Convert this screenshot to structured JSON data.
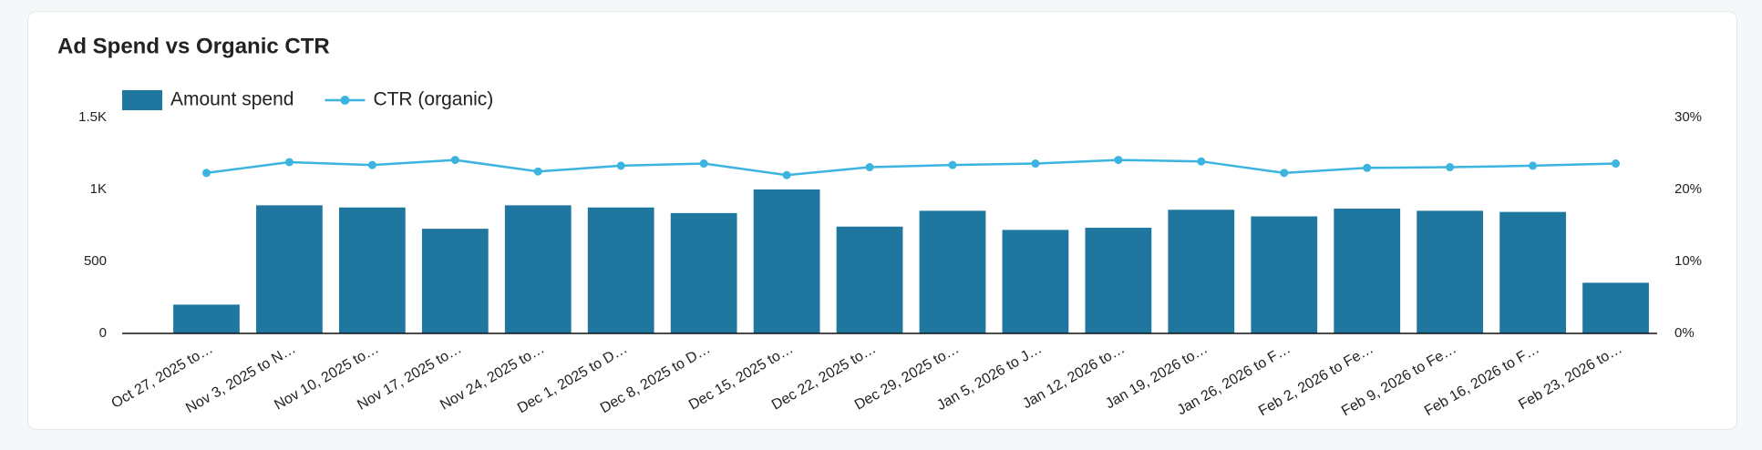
{
  "chart_data": {
    "type": "bar_line",
    "title": "Ad Spend vs Organic CTR",
    "categories": [
      "Oct 27, 2025 to…",
      "Nov 3, 2025 to N…",
      "Nov 10, 2025 to…",
      "Nov 17, 2025 to…",
      "Nov 24, 2025 to…",
      "Dec 1, 2025 to D…",
      "Dec 8, 2025 to D…",
      "Dec 15, 2025 to…",
      "Dec 22, 2025 to…",
      "Dec 29, 2025 to…",
      "Jan 5, 2026 to J…",
      "Jan 12, 2026 to…",
      "Jan 19, 2026 to…",
      "Jan 26, 2026 to F…",
      "Feb 2, 2026 to Fe…",
      "Feb 9, 2026 to Fe…",
      "Feb 16, 2026 to F…",
      "Feb 23, 2026 to…"
    ],
    "series": [
      {
        "name": "Amount spend",
        "type": "bar",
        "color": "#1f77a0",
        "values": [
          200,
          890,
          875,
          727,
          890,
          875,
          836,
          1000,
          742,
          852,
          719,
          734,
          859,
          813,
          867,
          852,
          844,
          352
        ]
      },
      {
        "name": "CTR (organic)",
        "type": "line",
        "axis": "y2",
        "color": "#3cb4e0",
        "values": [
          22.3,
          23.8,
          23.4,
          24.1,
          22.5,
          23.3,
          23.6,
          22.0,
          23.1,
          23.4,
          23.6,
          24.1,
          23.9,
          22.3,
          23.0,
          23.1,
          23.3,
          23.6
        ]
      }
    ],
    "ylim": [
      0,
      1500
    ],
    "yticks": [
      0,
      500,
      {
        "value": 1000,
        "label": "1K"
      },
      {
        "value": 1500,
        "label": "1.5K"
      }
    ],
    "y2lim": [
      0,
      30
    ],
    "y2ticks": [
      {
        "value": 0,
        "label": "0%"
      },
      {
        "value": 10,
        "label": "10%"
      },
      {
        "value": 20,
        "label": "20%"
      },
      {
        "value": 30,
        "label": "30%"
      }
    ]
  }
}
